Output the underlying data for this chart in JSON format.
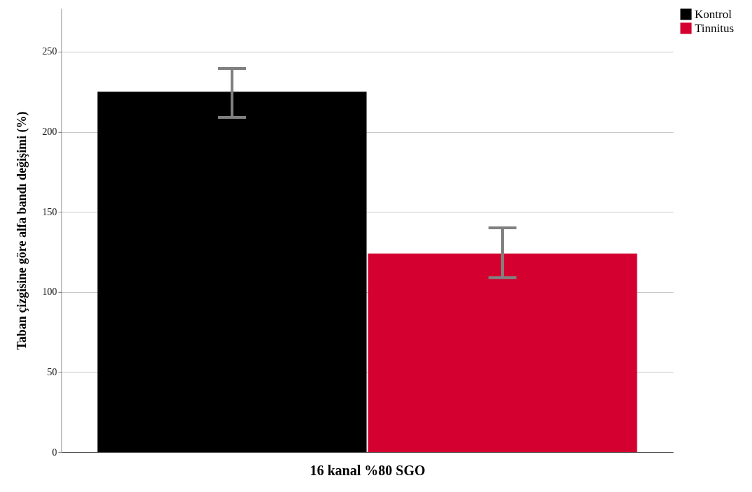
{
  "chart_data": {
    "type": "bar",
    "xlabel": "16 kanal %80 SGO",
    "ylabel": "Taban çizgisine göre alfa bandı değişimi (%)",
    "categories": [
      null
    ],
    "series": [
      {
        "name": "Kontrol",
        "color": "#000000",
        "values": [
          225
        ],
        "errors": [
          [
            209,
            239.5
          ]
        ]
      },
      {
        "name": "Tinnitus",
        "color": "#d40030",
        "values": [
          124
        ],
        "errors": [
          [
            109,
            140
          ]
        ]
      }
    ],
    "ylim": [
      0,
      277
    ],
    "yticks": [
      0,
      50,
      100,
      150,
      200,
      250
    ],
    "grid": "y",
    "legend": "top right"
  }
}
